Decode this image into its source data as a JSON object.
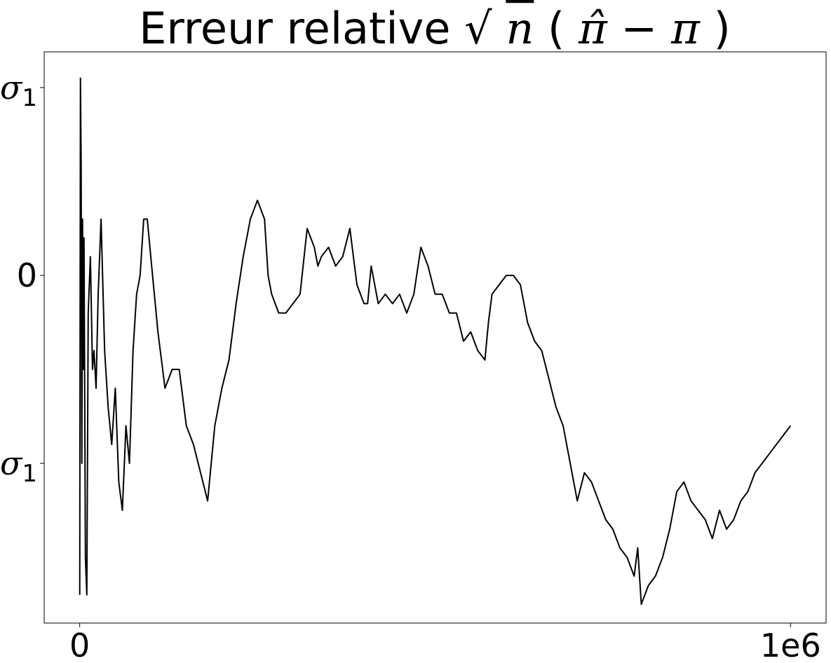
{
  "chart_data": {
    "type": "line",
    "title": {
      "prefix": "Erreur relative",
      "sqrt_symbol": "√",
      "n": "n",
      "open_paren": "(",
      "pi_hat": "π̂",
      "minus": "−",
      "pi": "π",
      "close_paren": ")"
    },
    "xlabel": "",
    "ylabel": "",
    "xlim": [
      -50000,
      1050000
    ],
    "ylim": [
      -1.85,
      1.19
    ],
    "grid": false,
    "legend": "none",
    "line_color": "#000000",
    "x_ticks": [
      {
        "value": 0,
        "label": "0"
      },
      {
        "value": 1000000,
        "label": "1e6"
      }
    ],
    "y_ticks": [
      {
        "value": 1,
        "label": "σ",
        "sub": "1"
      },
      {
        "value": 0,
        "label": "0",
        "sub": ""
      },
      {
        "value": -1,
        "label": "σ",
        "sub": "1"
      }
    ],
    "series": [
      {
        "x": [
          0,
          1000,
          2000,
          3000,
          4000,
          5000,
          6000,
          8000,
          10000,
          12000,
          15000,
          18000,
          20000,
          23000,
          26000,
          30000,
          35000,
          40000,
          45000,
          50000,
          55000,
          60000,
          65000,
          70000,
          75000,
          80000,
          85000,
          90000,
          95000,
          100000,
          110000,
          120000,
          130000,
          140000,
          150000,
          160000,
          170000,
          180000,
          185000,
          190000,
          200000,
          210000,
          215000,
          220000,
          230000,
          240000,
          250000,
          260000,
          265000,
          270000,
          280000,
          290000,
          300000,
          310000,
          320000,
          330000,
          335000,
          340000,
          350000,
          360000,
          370000,
          380000,
          390000,
          400000,
          405000,
          410000,
          420000,
          430000,
          440000,
          450000,
          460000,
          470000,
          480000,
          490000,
          500000,
          510000,
          520000,
          530000,
          540000,
          550000,
          560000,
          570000,
          575000,
          580000,
          590000,
          600000,
          610000,
          620000,
          630000,
          640000,
          650000,
          660000,
          670000,
          680000,
          690000,
          700000,
          710000,
          720000,
          730000,
          740000,
          750000,
          760000,
          770000,
          780000,
          785000,
          790000,
          800000,
          810000,
          820000,
          830000,
          840000,
          850000,
          860000,
          870000,
          880000,
          890000,
          900000,
          910000,
          920000,
          930000,
          940000,
          950000,
          960000,
          970000,
          980000,
          990000,
          1000000
        ],
        "y": [
          -1.7,
          1.05,
          0.6,
          -1.0,
          0.3,
          -0.5,
          0.2,
          -1.5,
          -1.7,
          -0.2,
          0.1,
          -0.5,
          -0.4,
          -0.6,
          -0.1,
          0.3,
          -0.4,
          -0.7,
          -0.9,
          -0.6,
          -1.1,
          -1.25,
          -0.8,
          -1.0,
          -0.4,
          -0.1,
          0.0,
          0.3,
          0.3,
          0.1,
          -0.3,
          -0.6,
          -0.5,
          -0.5,
          -0.8,
          -0.9,
          -1.05,
          -1.2,
          -1.0,
          -0.8,
          -0.6,
          -0.45,
          -0.3,
          -0.15,
          0.1,
          0.3,
          0.4,
          0.3,
          0.0,
          -0.1,
          -0.2,
          -0.2,
          -0.15,
          -0.1,
          0.25,
          0.15,
          0.05,
          0.1,
          0.15,
          0.05,
          0.1,
          0.25,
          -0.05,
          -0.15,
          -0.15,
          0.05,
          -0.15,
          -0.1,
          -0.15,
          -0.1,
          -0.2,
          -0.1,
          0.15,
          0.05,
          -0.1,
          -0.1,
          -0.2,
          -0.2,
          -0.35,
          -0.3,
          -0.4,
          -0.45,
          -0.25,
          -0.1,
          -0.05,
          0.0,
          0.0,
          -0.05,
          -0.25,
          -0.35,
          -0.4,
          -0.55,
          -0.7,
          -0.8,
          -1.0,
          -1.2,
          -1.05,
          -1.1,
          -1.2,
          -1.3,
          -1.35,
          -1.45,
          -1.5,
          -1.6,
          -1.45,
          -1.75,
          -1.65,
          -1.6,
          -1.5,
          -1.35,
          -1.15,
          -1.1,
          -1.2,
          -1.25,
          -1.3,
          -1.4,
          -1.25,
          -1.35,
          -1.3,
          -1.2,
          -1.15,
          -1.05,
          -1.0,
          -0.95,
          -0.9,
          -0.85,
          -0.8
        ]
      }
    ]
  }
}
